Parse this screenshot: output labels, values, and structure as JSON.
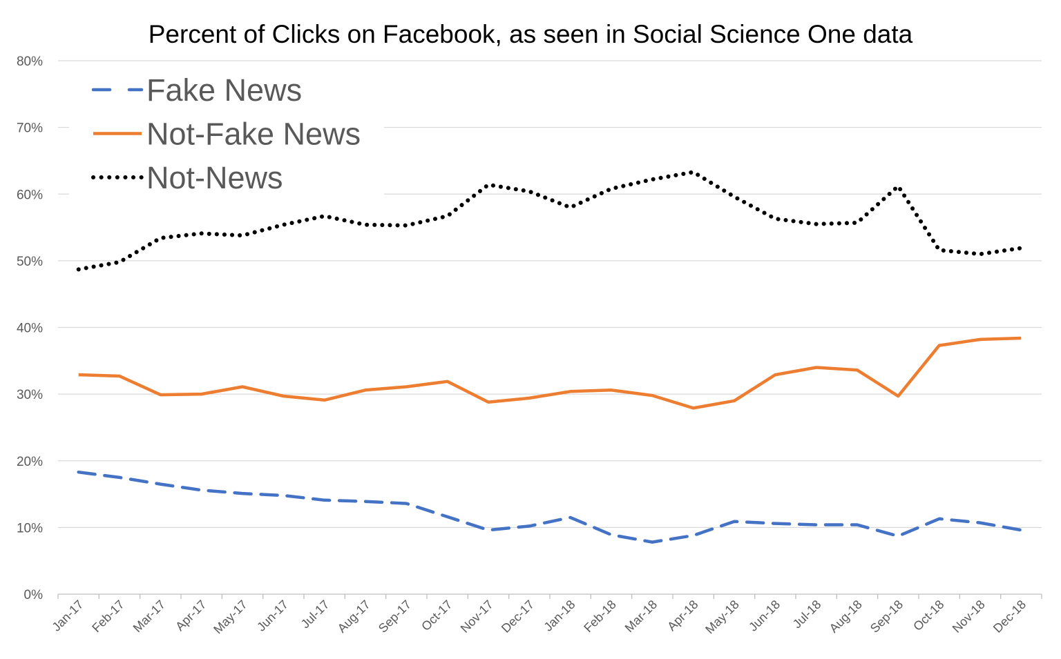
{
  "chart_data": {
    "type": "line",
    "title": "Percent of Clicks on Facebook, as seen in Social Science One data",
    "xlabel": "",
    "ylabel": "",
    "ylim": [
      0,
      80
    ],
    "yticks": [
      "0%",
      "10%",
      "20%",
      "30%",
      "40%",
      "50%",
      "60%",
      "70%",
      "80%"
    ],
    "grid": true,
    "legend_position": "top-left",
    "categories": [
      "Jan-17",
      "Feb-17",
      "Mar-17",
      "Apr-17",
      "May-17",
      "Jun-17",
      "Jul-17",
      "Aug-17",
      "Sep-17",
      "Oct-17",
      "Nov-17",
      "Dec-17",
      "Jan-18",
      "Feb-18",
      "Mar-18",
      "Apr-18",
      "May-18",
      "Jun-18",
      "Jul-18",
      "Aug-18",
      "Sep-18",
      "Oct-18",
      "Nov-18",
      "Dec-18"
    ],
    "series": [
      {
        "name": "Fake News",
        "color": "#4472C4",
        "style": "dashed",
        "values": [
          18.3,
          17.5,
          16.5,
          15.6,
          15.1,
          14.8,
          14.1,
          13.9,
          13.6,
          11.6,
          9.6,
          10.2,
          11.5,
          8.9,
          7.8,
          8.8,
          10.9,
          10.6,
          10.4,
          10.4,
          8.7,
          11.3,
          10.7,
          9.6
        ]
      },
      {
        "name": "Not-Fake News",
        "color": "#ED7D31",
        "style": "solid",
        "values": [
          32.9,
          32.7,
          29.9,
          30.0,
          31.1,
          29.7,
          29.1,
          30.6,
          31.1,
          31.9,
          28.8,
          29.4,
          30.4,
          30.6,
          29.8,
          27.9,
          29.0,
          32.9,
          34.0,
          33.6,
          29.7,
          37.3,
          38.2,
          38.4
        ]
      },
      {
        "name": "Not-News",
        "color": "#000000",
        "style": "dotted",
        "values": [
          48.7,
          49.8,
          53.4,
          54.1,
          53.8,
          55.4,
          56.7,
          55.4,
          55.3,
          56.7,
          61.4,
          60.4,
          58.0,
          60.8,
          62.2,
          63.3,
          59.6,
          56.3,
          55.5,
          55.7,
          61.2,
          51.6,
          51.0,
          51.9
        ]
      }
    ]
  }
}
